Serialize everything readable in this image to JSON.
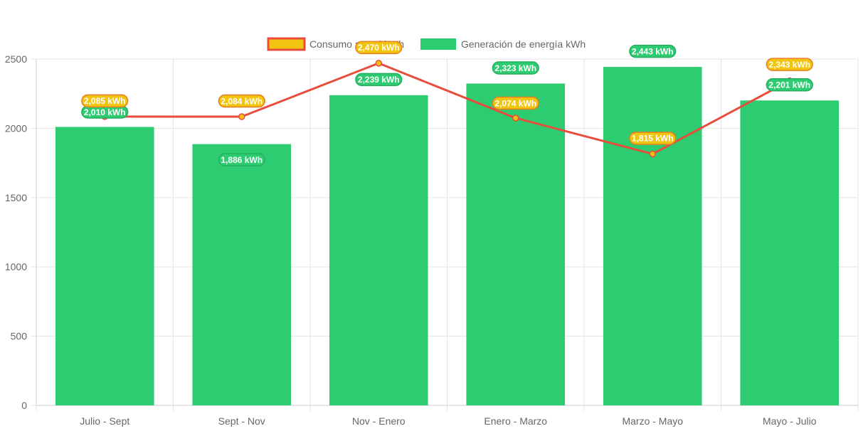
{
  "chart_data": {
    "type": "bar",
    "categories": [
      "Julio - Sept",
      "Sept - Nov",
      "Nov - Enero",
      "Enero - Marzo",
      "Marzo - Mayo",
      "Mayo - Julio"
    ],
    "series": [
      {
        "name": "Consumo actual kWh",
        "type": "line",
        "values": [
          2085,
          2084,
          2470,
          2074,
          1815,
          2343
        ],
        "labels": [
          "2,085 kWh",
          "2,084 kWh",
          "2,470 kWh",
          "2,074 kWh",
          "1,815 kWh",
          "2,343 kWh"
        ],
        "line_color": "#e74c3c",
        "fill_color": "#f1c40f"
      },
      {
        "name": "Generación de energía kWh",
        "type": "bar",
        "values": [
          2010,
          1886,
          2239,
          2323,
          2443,
          2201
        ],
        "labels": [
          "2,010 kWh",
          "1,886 kWh",
          "2,239 kWh",
          "2,323 kWh",
          "2,443 kWh",
          "2,201 kWh"
        ],
        "color": "#2ecc71"
      }
    ],
    "y_ticks": [
      "0",
      "500",
      "1000",
      "1500",
      "2000",
      "2500"
    ],
    "ylim": [
      0,
      2500
    ],
    "grid": true,
    "legend_position": "top"
  }
}
